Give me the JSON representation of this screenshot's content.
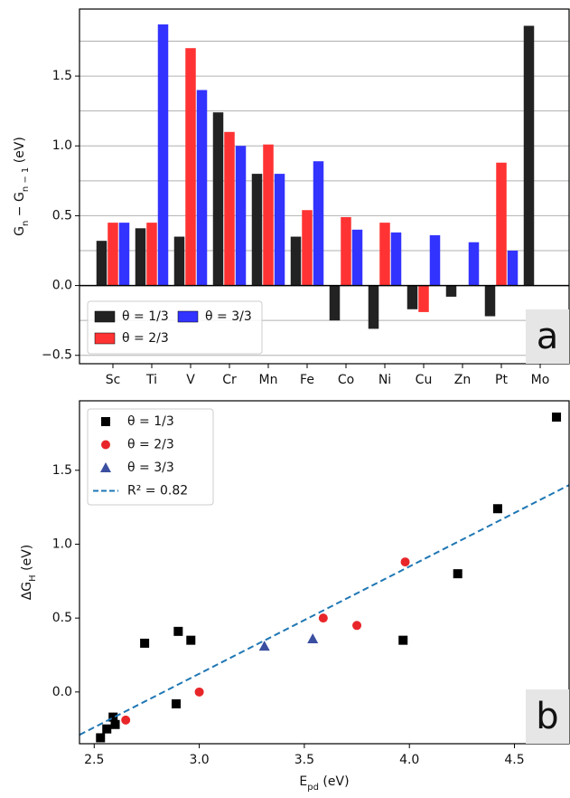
{
  "chart_data": [
    {
      "type": "bar",
      "ylabel": [
        "G",
        "n",
        " − G",
        "n − 1",
        " (eV)"
      ],
      "categories": [
        "Sc",
        "Ti",
        "V",
        "Cr",
        "Mn",
        "Fe",
        "Co",
        "Ni",
        "Cu",
        "Zn",
        "Pt",
        "Mo"
      ],
      "series": [
        {
          "name": "θ = 1/3",
          "color": "#222222",
          "values": [
            0.32,
            0.41,
            0.35,
            1.24,
            0.8,
            0.35,
            -0.25,
            -0.31,
            -0.17,
            -0.08,
            -0.22,
            1.86
          ]
        },
        {
          "name": "θ = 2/3",
          "color": "#ff3333",
          "values": [
            0.45,
            0.45,
            1.7,
            1.1,
            1.01,
            0.54,
            0.49,
            0.45,
            -0.19,
            null,
            0.88,
            null
          ]
        },
        {
          "name": "θ = 3/3",
          "color": "#3333ff",
          "values": [
            0.45,
            1.87,
            1.4,
            1.0,
            0.8,
            0.89,
            0.4,
            0.38,
            0.36,
            0.31,
            0.25,
            null
          ]
        }
      ],
      "ylim": [
        -0.56,
        1.98
      ],
      "yticks": [
        {
          "value": -0.5,
          "label": "−0.5"
        },
        {
          "value": 0,
          "label": "0.0"
        },
        0.5,
        {
          "value": 1,
          "label": "1.0"
        },
        1.5
      ],
      "minor_yticks": [
        -0.25,
        0.25,
        0.75,
        1.25,
        1.75
      ],
      "grid": true,
      "legend": "lower left",
      "panel_label": "a"
    },
    {
      "type": "scatter",
      "xlabel": [
        "E",
        "pd",
        " (eV)"
      ],
      "ylabel": [
        "ΔG",
        "H",
        " (eV)"
      ],
      "series": [
        {
          "name": "θ = 1/3",
          "color": "#000000",
          "marker": "square",
          "x": [
            2.53,
            2.56,
            2.59,
            2.6,
            2.74,
            2.9,
            2.96,
            2.89,
            3.97,
            4.23,
            4.42,
            4.7
          ],
          "values": [
            -0.31,
            -0.25,
            -0.17,
            -0.22,
            0.33,
            0.41,
            0.35,
            -0.08,
            0.35,
            0.8,
            1.24,
            1.86
          ]
        },
        {
          "name": "θ = 2/3",
          "color": "#e8262a",
          "marker": "circle",
          "x": [
            2.65,
            3.0,
            3.59,
            3.75,
            3.98
          ],
          "values": [
            -0.19,
            0.0,
            0.5,
            0.45,
            0.88
          ]
        },
        {
          "name": "θ = 3/3",
          "color": "#3a4fa0",
          "marker": "triangle",
          "x": [
            3.31,
            3.54
          ],
          "values": [
            0.31,
            0.36
          ]
        },
        {
          "name": "R² = 0.82",
          "color": "#1f77b4",
          "marker": "dashed-line",
          "x": [
            2.43,
            4.76
          ],
          "values": [
            -0.29,
            1.4
          ]
        }
      ],
      "xlim": [
        2.43,
        4.76
      ],
      "ylim": [
        -0.35,
        1.97
      ],
      "xticks": [
        2.5,
        {
          "value": 3,
          "label": "3.0"
        },
        3.5,
        {
          "value": 4,
          "label": "4.0"
        },
        4.5
      ],
      "yticks": [
        {
          "value": 0,
          "label": "0.0"
        },
        0.5,
        {
          "value": 1,
          "label": "1.0"
        },
        1.5
      ],
      "legend": "upper left",
      "panel_label": "b"
    }
  ]
}
